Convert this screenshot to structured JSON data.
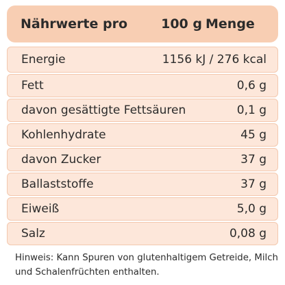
{
  "header": {
    "cells": [
      "Nährwerte pro",
      "100 g",
      "Menge"
    ]
  },
  "table": {
    "rows": [
      [
        "Energie",
        "1156 kJ / 276 kcal"
      ],
      [
        "Fett",
        "0,6 g"
      ],
      [
        "davon gesättigte Fettsäuren",
        "0,1 g"
      ],
      [
        "Kohlenhydrate",
        "45 g"
      ],
      [
        "davon Zucker",
        "37 g"
      ],
      [
        "Ballaststoffe",
        "37 g"
      ],
      [
        "Eiweiß",
        "5,0 g"
      ],
      [
        "Salz",
        "0,08 g"
      ]
    ]
  },
  "footnote": "Hinweis: Kann Spuren von glutenhaltigem Getreide, Milch und Schalenfrüchten enthalten."
}
